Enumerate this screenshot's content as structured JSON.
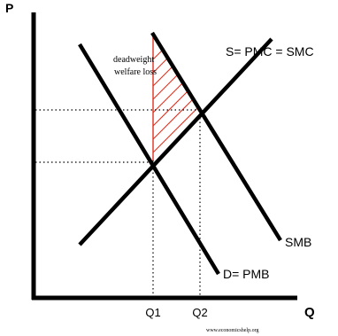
{
  "axes": {
    "y_label": "P",
    "x_label": "Q"
  },
  "curves": {
    "supply_label": "S= PMC = SMC",
    "smb_label": "SMB",
    "demand_label": "D= PMB"
  },
  "quantities": {
    "q1_label": "Q1",
    "q2_label": "Q2"
  },
  "annotation": {
    "line1": "deadweight",
    "line2": "welfare loss"
  },
  "source": "www.economicshelp.org",
  "colors": {
    "curve": "#000000",
    "hatch": "#e0301e",
    "background": "#ffffff"
  }
}
